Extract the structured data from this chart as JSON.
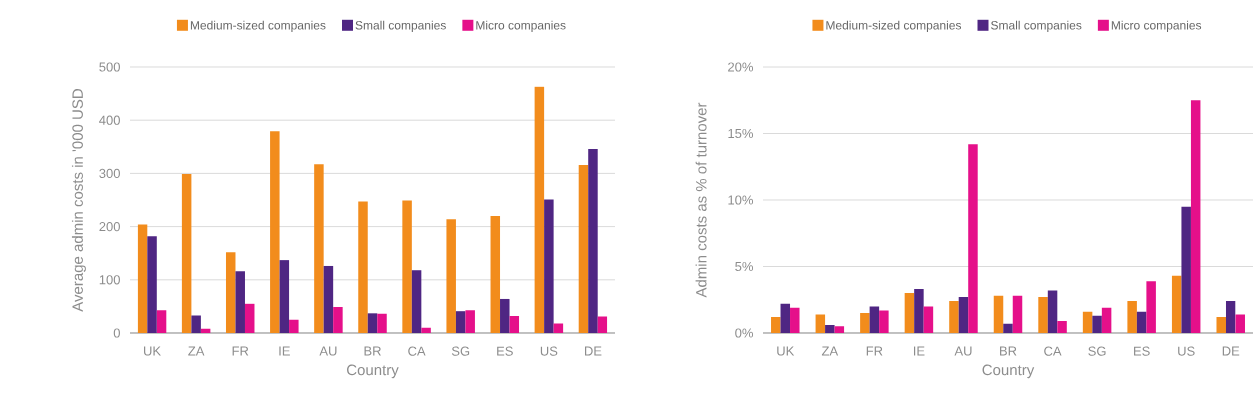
{
  "chart_data": [
    {
      "type": "bar",
      "xlabel": "Country",
      "ylabel": "Average admin costs in '000 USD",
      "categories": [
        "UK",
        "ZA",
        "FR",
        "IE",
        "AU",
        "BR",
        "CA",
        "SG",
        "ES",
        "US",
        "DE"
      ],
      "series": [
        {
          "name": "Medium-sized companies",
          "color": "#f28c1c",
          "values": [
            204,
            299,
            152,
            379,
            317,
            247,
            249,
            214,
            220,
            463,
            316
          ]
        },
        {
          "name": "Small companies",
          "color": "#4f2683",
          "values": [
            182,
            33,
            116,
            137,
            126,
            37,
            118,
            41,
            64,
            251,
            346
          ]
        },
        {
          "name": "Micro companies",
          "color": "#e5108a",
          "values": [
            43,
            8,
            55,
            25,
            49,
            36,
            10,
            43,
            32,
            18,
            31
          ]
        }
      ],
      "ylim": [
        0,
        500
      ],
      "yticks": [
        0,
        100,
        200,
        300,
        400,
        500
      ],
      "grid": "y",
      "legend": "top"
    },
    {
      "type": "bar",
      "xlabel": "Country",
      "ylabel": "Admin costs as % of turnover",
      "categories": [
        "UK",
        "ZA",
        "FR",
        "IE",
        "AU",
        "BR",
        "CA",
        "SG",
        "ES",
        "US",
        "DE"
      ],
      "series": [
        {
          "name": "Medium-sized companies",
          "color": "#f28c1c",
          "values": [
            1.2,
            1.4,
            1.5,
            3.0,
            2.4,
            2.8,
            2.7,
            1.6,
            2.4,
            4.3,
            1.2
          ]
        },
        {
          "name": "Small companies",
          "color": "#4f2683",
          "values": [
            2.2,
            0.6,
            2.0,
            3.3,
            2.7,
            0.7,
            3.2,
            1.3,
            1.6,
            9.5,
            2.4
          ]
        },
        {
          "name": "Micro companies",
          "color": "#e5108a",
          "values": [
            1.9,
            0.5,
            1.7,
            2.0,
            14.2,
            2.8,
            0.9,
            1.9,
            3.9,
            17.5,
            1.4
          ]
        }
      ],
      "ylim": [
        0,
        20
      ],
      "yticks": [
        {
          "value": 0,
          "label": "0%"
        },
        {
          "value": 5,
          "label": "5%"
        },
        {
          "value": 10,
          "label": "10%"
        },
        {
          "value": 15,
          "label": "15%"
        },
        {
          "value": 20,
          "label": "20%"
        }
      ],
      "grid": "y",
      "legend": "top"
    }
  ]
}
